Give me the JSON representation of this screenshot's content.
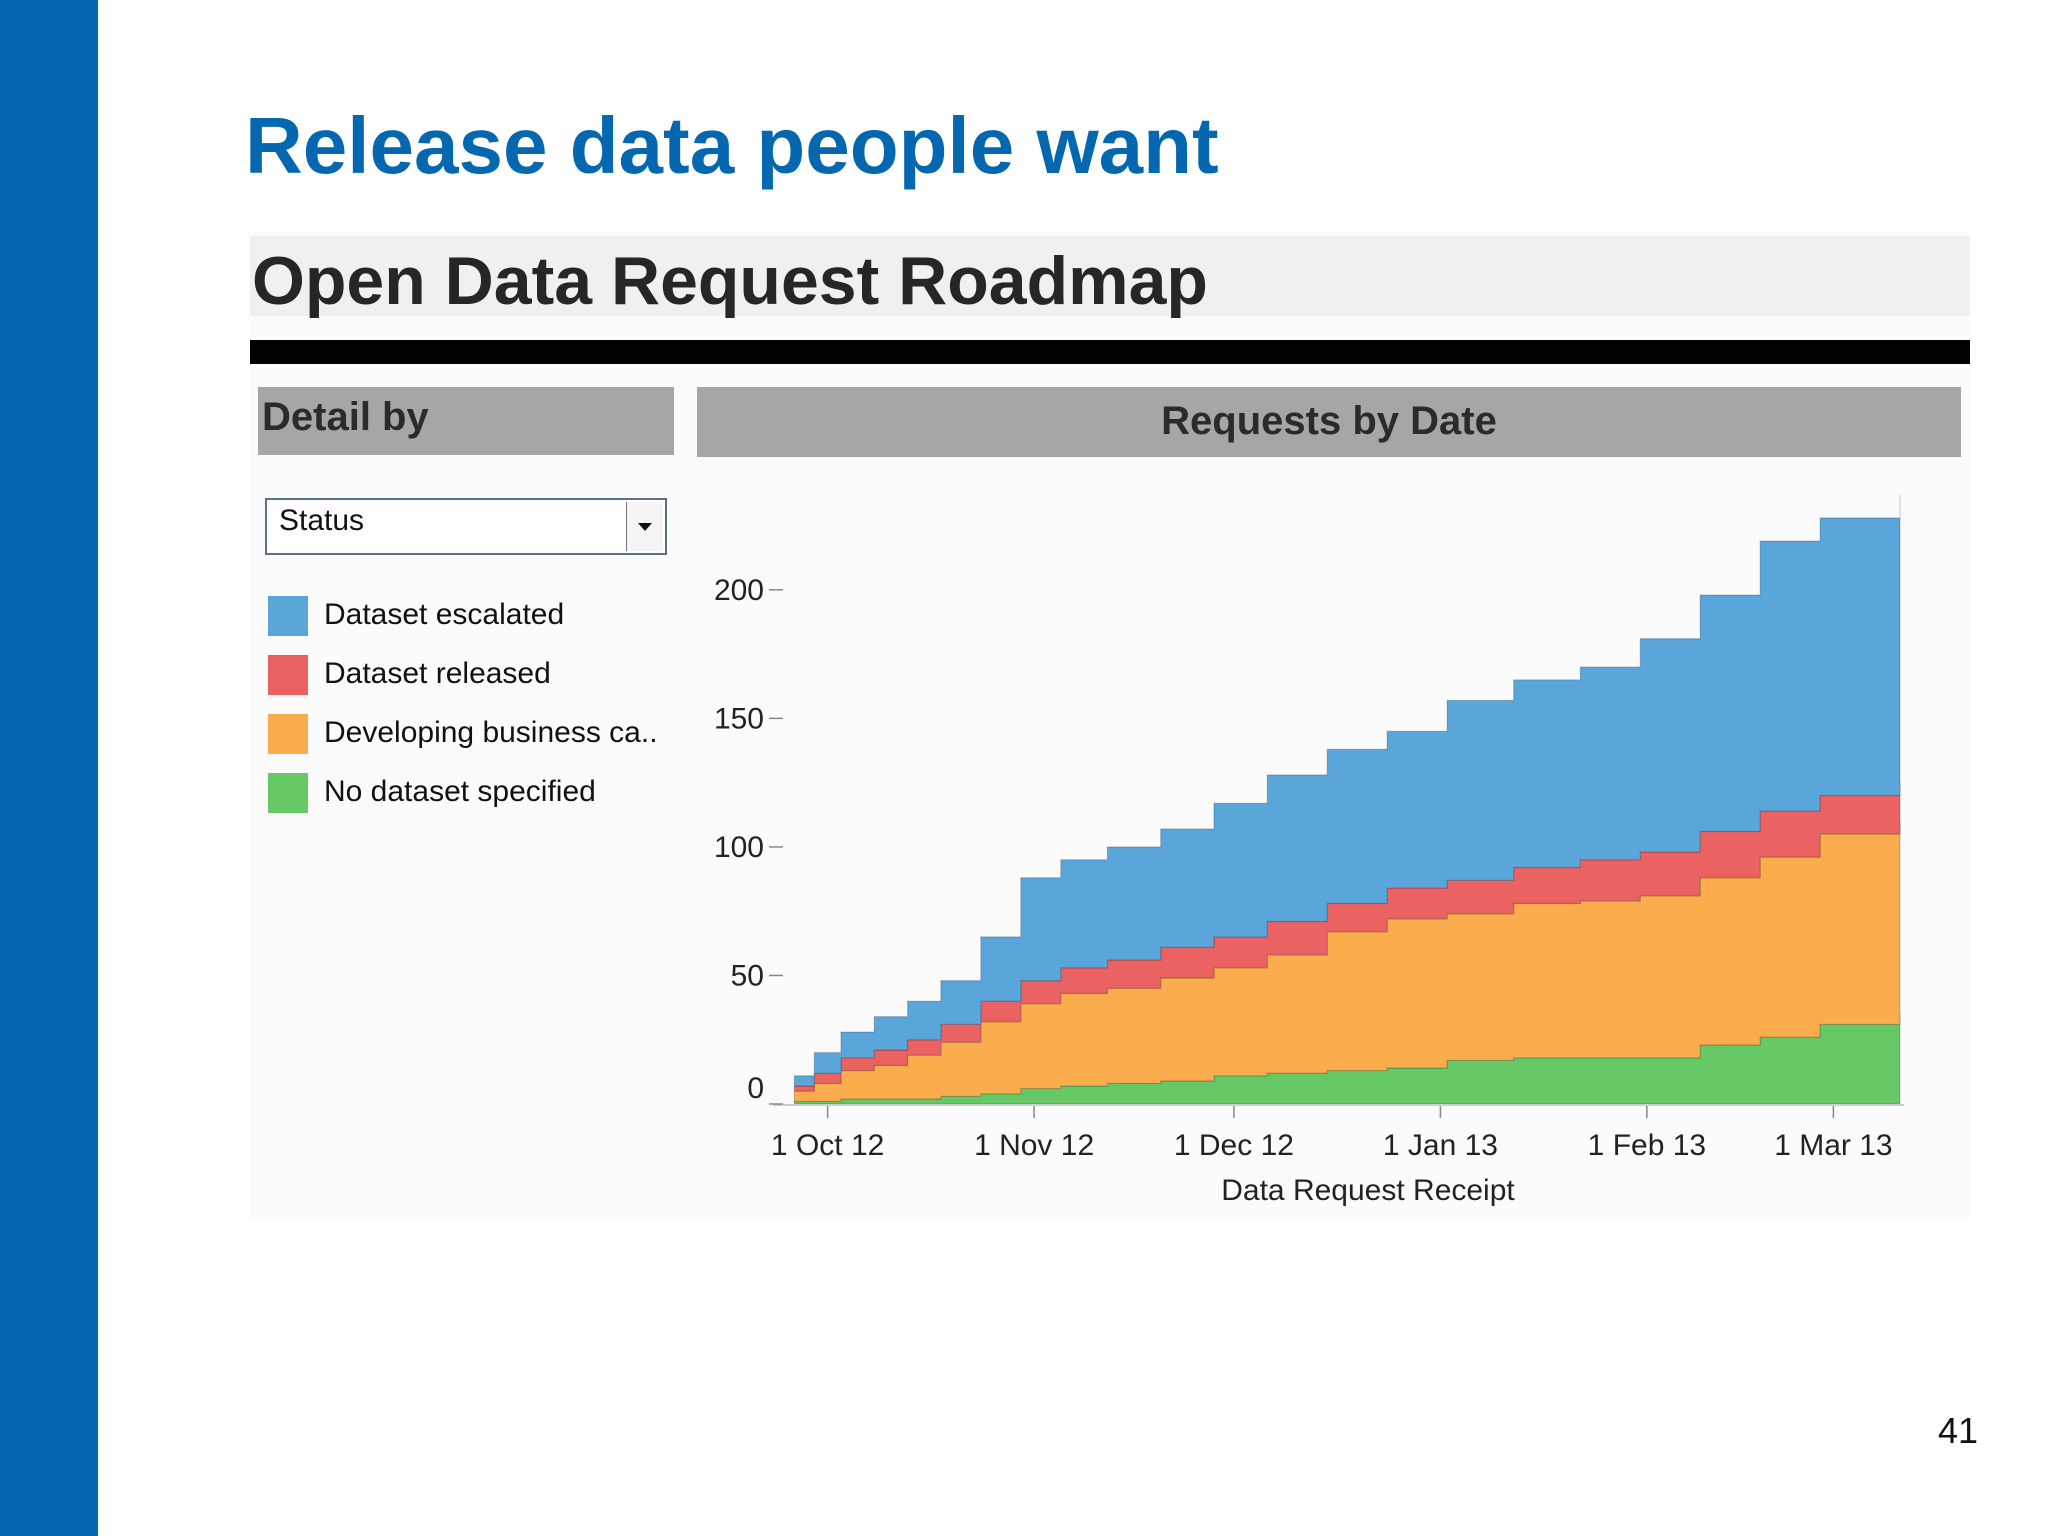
{
  "slide": {
    "title": "Release data people want",
    "page_number": "41"
  },
  "dashboard": {
    "title": "Open Data Request Roadmap",
    "detail_header": "Detail by",
    "select_value": "Status",
    "chart_header": "Requests by Date"
  },
  "colors": {
    "brand": "#0467b0",
    "dataset_escalated": "#5aa6da",
    "dataset_released": "#ea6262",
    "developing_business_case": "#fbad4e",
    "no_dataset_specified": "#67c966"
  },
  "legend": [
    {
      "label": "Dataset escalated",
      "color": "#5aa6da"
    },
    {
      "label": "Dataset released",
      "color": "#ea6262"
    },
    {
      "label": "Developing business ca..",
      "color": "#fbad4e"
    },
    {
      "label": "No dataset specified",
      "color": "#67c966"
    }
  ],
  "chart_data": {
    "type": "area",
    "stacked": true,
    "cumulative": true,
    "title": "Requests by Date",
    "xlabel": "Data Request Receipt",
    "ylabel": "",
    "ylim": [
      0,
      240
    ],
    "yticks": [
      0,
      50,
      100,
      150,
      200
    ],
    "xticks": [
      {
        "date": "2012-10-01",
        "label": "1 Oct 12"
      },
      {
        "date": "2012-11-01",
        "label": "1 Nov 12"
      },
      {
        "date": "2012-12-01",
        "label": "1 Dec 12"
      },
      {
        "date": "2013-01-01",
        "label": "1 Jan 13"
      },
      {
        "date": "2013-02-01",
        "label": "1 Feb 13"
      },
      {
        "date": "2013-03-01",
        "label": "1 Mar 13"
      }
    ],
    "xlim": [
      "2012-09-24",
      "2013-03-11"
    ],
    "x": [
      "2012-09-26",
      "2012-09-29",
      "2012-10-03",
      "2012-10-08",
      "2012-10-13",
      "2012-10-18",
      "2012-10-24",
      "2012-10-30",
      "2012-11-05",
      "2012-11-12",
      "2012-11-20",
      "2012-11-28",
      "2012-12-06",
      "2012-12-15",
      "2012-12-24",
      "2013-01-02",
      "2013-01-12",
      "2013-01-22",
      "2013-01-31",
      "2013-02-09",
      "2013-02-18",
      "2013-02-27",
      "2013-03-11"
    ],
    "series": [
      {
        "name": "No dataset specified",
        "values": [
          1,
          1,
          2,
          2,
          2,
          3,
          4,
          6,
          7,
          8,
          9,
          11,
          12,
          13,
          14,
          17,
          18,
          18,
          18,
          23,
          26,
          31,
          35
        ]
      },
      {
        "name": "Developing business case",
        "values": [
          4,
          7,
          11,
          13,
          17,
          21,
          28,
          33,
          36,
          37,
          40,
          42,
          46,
          54,
          58,
          57,
          60,
          61,
          63,
          65,
          70,
          74,
          75
        ]
      },
      {
        "name": "Dataset released",
        "values": [
          2,
          4,
          5,
          6,
          6,
          7,
          8,
          9,
          10,
          11,
          12,
          12,
          13,
          11,
          12,
          13,
          14,
          16,
          17,
          18,
          18,
          15,
          16
        ]
      },
      {
        "name": "Dataset escalated",
        "values": [
          4,
          8,
          10,
          13,
          15,
          17,
          25,
          40,
          42,
          44,
          46,
          52,
          57,
          60,
          61,
          70,
          73,
          75,
          83,
          92,
          105,
          108,
          111
        ]
      }
    ]
  }
}
